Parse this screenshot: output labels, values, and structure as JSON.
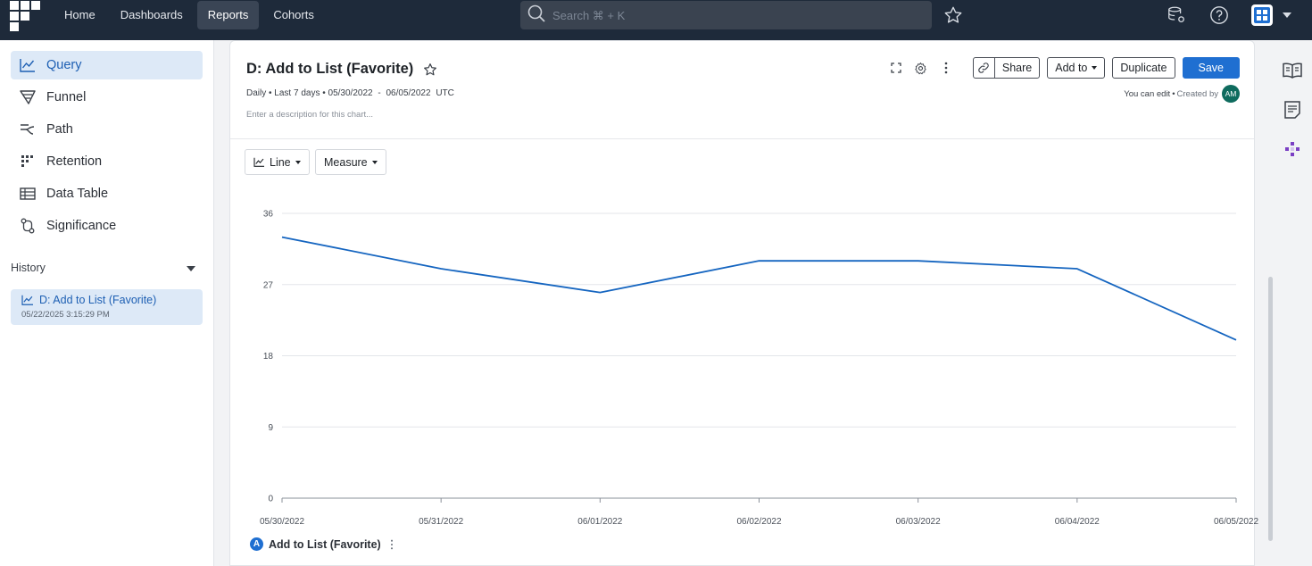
{
  "topnav": {
    "items": [
      {
        "label": "Home",
        "active": false
      },
      {
        "label": "Dashboards",
        "active": false
      },
      {
        "label": "Reports",
        "active": true
      },
      {
        "label": "Cohorts",
        "active": false
      }
    ],
    "search_placeholder": "Search ⌘ + K"
  },
  "sidebar": {
    "items": [
      {
        "label": "Query",
        "icon": "line-chart-icon",
        "active": true
      },
      {
        "label": "Funnel",
        "icon": "funnel-icon",
        "active": false
      },
      {
        "label": "Path",
        "icon": "path-icon",
        "active": false
      },
      {
        "label": "Retention",
        "icon": "retention-icon",
        "active": false
      },
      {
        "label": "Data Table",
        "icon": "table-icon",
        "active": false
      },
      {
        "label": "Significance",
        "icon": "significance-icon",
        "active": false
      }
    ],
    "history": {
      "label": "History",
      "entry_title": "D: Add to List (Favorite)",
      "entry_date": "05/22/2025 3:15:29 PM"
    }
  },
  "report": {
    "title": "D: Add to List (Favorite)",
    "meta": {
      "interval": "Daily",
      "range": "Last 7 days",
      "start": "05/30/2022",
      "separator": "-",
      "end": "06/05/2022",
      "tz": "UTC"
    },
    "description_placeholder": "Enter a description for this chart...",
    "actions": {
      "share": "Share",
      "add_to": "Add to",
      "duplicate": "Duplicate",
      "save": "Save"
    },
    "permissions": {
      "edit": "You can edit",
      "created_by": "Created by",
      "avatar": "AM"
    },
    "controls": {
      "chart_type": "Line",
      "measure": "Measure"
    },
    "legend": {
      "badge": "A",
      "label": "Add to List (Favorite)"
    }
  },
  "colors": {
    "accent": "#1f6fd1",
    "line": "#1565c0",
    "topbar": "#1e2a3a"
  },
  "chart_data": {
    "type": "line",
    "x": [
      "05/30/2022",
      "05/31/2022",
      "06/01/2022",
      "06/02/2022",
      "06/03/2022",
      "06/04/2022",
      "06/05/2022"
    ],
    "series": [
      {
        "name": "Add to List (Favorite)",
        "values": [
          33,
          29,
          26,
          30,
          30,
          29,
          20
        ]
      }
    ],
    "yticks": [
      0,
      9,
      18,
      27,
      36
    ],
    "ylim": [
      0,
      36
    ],
    "grid": true
  }
}
